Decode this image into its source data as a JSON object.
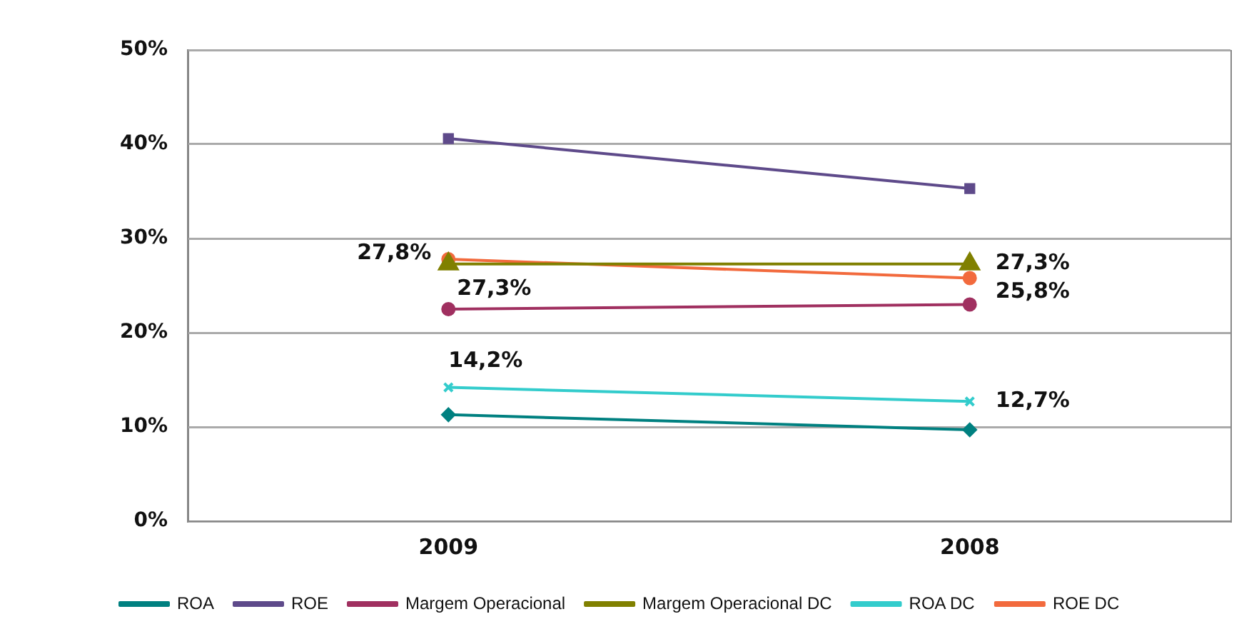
{
  "chart_data": {
    "type": "line",
    "categories": [
      "2009",
      "2008"
    ],
    "ylim": [
      0,
      50
    ],
    "yticks": [
      {
        "value": 0,
        "label": "0%"
      },
      {
        "value": 10,
        "label": "10%"
      },
      {
        "value": 20,
        "label": "20%"
      },
      {
        "value": 30,
        "label": "30%"
      },
      {
        "value": 40,
        "label": "40%"
      },
      {
        "value": 50,
        "label": "50%"
      }
    ],
    "grid": "y",
    "legend": "bottom",
    "series": [
      {
        "name": "ROA",
        "color": "#008080",
        "marker": "diamond",
        "values": [
          11.3,
          9.7
        ]
      },
      {
        "name": "ROE",
        "color": "#5e4a8a",
        "marker": "square",
        "values": [
          40.6,
          35.3
        ]
      },
      {
        "name": "Margem Operacional",
        "color": "#a03060",
        "marker": "circle",
        "values": [
          22.5,
          23.0
        ]
      },
      {
        "name": "Margem Operacional DC",
        "color": "#808000",
        "marker": "triangle",
        "values": [
          27.3,
          27.3
        ],
        "value_labels": [
          "27,3%",
          "27,3%"
        ]
      },
      {
        "name": "ROA DC",
        "color": "#33cccc",
        "marker": "cross",
        "values": [
          14.2,
          12.7
        ],
        "value_labels": [
          "14,2%",
          "12,7%"
        ]
      },
      {
        "name": "ROE DC",
        "color": "#f26a3d",
        "marker": "circle",
        "values": [
          27.8,
          25.8
        ],
        "value_labels": [
          "27,8%",
          "25,8%"
        ]
      }
    ]
  }
}
